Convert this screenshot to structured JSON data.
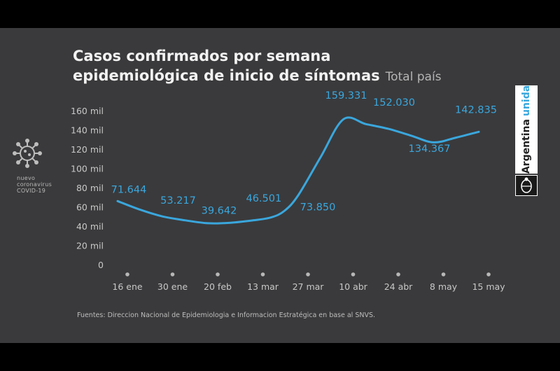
{
  "header": {
    "title_line1": "Casos confirmados por semana",
    "title_line2": "epidemiológica de inicio de síntomas",
    "subtitle": "Total país"
  },
  "logo_left": {
    "line1": "nuevo",
    "line2": "coronavirus",
    "line3": "COVID-19",
    "icon": "coronavirus-icon"
  },
  "logo_right": {
    "word1": "Argentina",
    "word2": "unida",
    "icon": "national-seal-icon"
  },
  "footer": {
    "source": "Fuentes: Direccion Nacional de Epidemiologia e Informacion Estratégica en base al SNVS."
  },
  "colors": {
    "background": "#3a3a3c",
    "line": "#3aa7dd",
    "label": "#3aa7dd",
    "axis_text": "#c8c8c8",
    "title": "#f2f2f2"
  },
  "chart_data": {
    "type": "line",
    "title": "Casos confirmados por semana epidemiológica de inicio de síntomas",
    "subtitle": "Total país",
    "categories": [
      "16 ene",
      "30 ene",
      "20 feb",
      "13 mar",
      "27 mar",
      "10 abr",
      "24 abr",
      "8 may",
      "15 may"
    ],
    "ylim": [
      0,
      160000
    ],
    "yticks": [
      0,
      20000,
      40000,
      60000,
      80000,
      100000,
      120000,
      140000,
      160000
    ],
    "ytick_labels": [
      "0",
      "20 mil",
      "40 mil",
      "60 mil",
      "80 mil",
      "100 mil",
      "120 mil",
      "140 mil",
      "160 mil"
    ],
    "labeled_points": [
      {
        "x": 0,
        "value": 71644,
        "label": "71.644"
      },
      {
        "x": 1,
        "value": 53217,
        "label": "53.217"
      },
      {
        "x": 2,
        "value": 39642,
        "label": "39.642"
      },
      {
        "x": 3.3,
        "value": 46501,
        "label": "46.501"
      },
      {
        "x": 4,
        "value": 73850,
        "label": "73.850"
      },
      {
        "x": 5,
        "value": 159331,
        "label": "159.331"
      },
      {
        "x": 6,
        "value": 152030,
        "label": "152.030"
      },
      {
        "x": 7,
        "value": 134367,
        "label": "134.367"
      },
      {
        "x": 8,
        "value": 142835,
        "label": "142.835"
      }
    ],
    "curve": [
      {
        "x": 0,
        "value": 66000
      },
      {
        "x": 0.5,
        "value": 57000
      },
      {
        "x": 1,
        "value": 50000
      },
      {
        "x": 1.5,
        "value": 46000
      },
      {
        "x": 2,
        "value": 43000
      },
      {
        "x": 2.5,
        "value": 43500
      },
      {
        "x": 3,
        "value": 46000
      },
      {
        "x": 3.4,
        "value": 49000
      },
      {
        "x": 3.7,
        "value": 56000
      },
      {
        "x": 4,
        "value": 72000
      },
      {
        "x": 4.5,
        "value": 112000
      },
      {
        "x": 5,
        "value": 151000
      },
      {
        "x": 5.5,
        "value": 146000
      },
      {
        "x": 6,
        "value": 141000
      },
      {
        "x": 6.5,
        "value": 134000
      },
      {
        "x": 7,
        "value": 127000
      },
      {
        "x": 7.5,
        "value": 132000
      },
      {
        "x": 8,
        "value": 138000
      }
    ],
    "grid": false,
    "legend": "none"
  }
}
